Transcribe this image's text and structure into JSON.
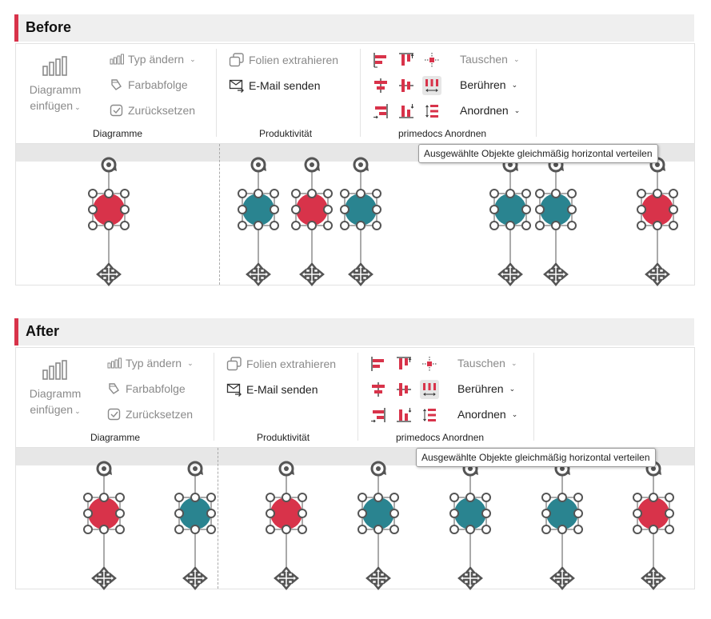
{
  "before": {
    "title": "Before",
    "objects": [
      "red",
      "teal",
      "red",
      "teal",
      "teal",
      "teal",
      "red"
    ]
  },
  "after": {
    "title": "After",
    "objects": [
      "red",
      "teal",
      "red",
      "teal",
      "teal",
      "teal",
      "red"
    ]
  },
  "ribbon": {
    "diagramme": {
      "insert_line1": "Diagramm",
      "insert_line2": "einfügen",
      "type_change": "Typ ändern",
      "color_order": "Farbabfolge",
      "reset": "Zurücksetzen",
      "group_label": "Diagramme"
    },
    "produktivitaet": {
      "extract_slides": "Folien extrahieren",
      "email_send": "E-Mail senden",
      "group_label": "Produktivität"
    },
    "anordnen": {
      "swap": "Tauschen",
      "touch": "Berühren",
      "arrange": "Anordnen",
      "group_label": "primedocs Anordnen"
    },
    "tooltip": "Ausgewählte Objekte gleichmäßig horizontal verteilen"
  },
  "colors": {
    "red": "#d8334a",
    "teal": "#2a8490",
    "accent": "#d8334a"
  },
  "icons": [
    "chart-icon",
    "chart-type-icon",
    "color-order-icon",
    "reset-icon",
    "extract-icon",
    "email-icon",
    "align-left-icon",
    "align-top-icon",
    "align-center-point-icon",
    "align-center-h-icon",
    "align-middle-v-icon",
    "distribute-horizontal-icon",
    "align-right-icon",
    "align-bottom-icon",
    "distribute-vertical-icon",
    "rotate-handle-icon",
    "move-handle-icon"
  ]
}
